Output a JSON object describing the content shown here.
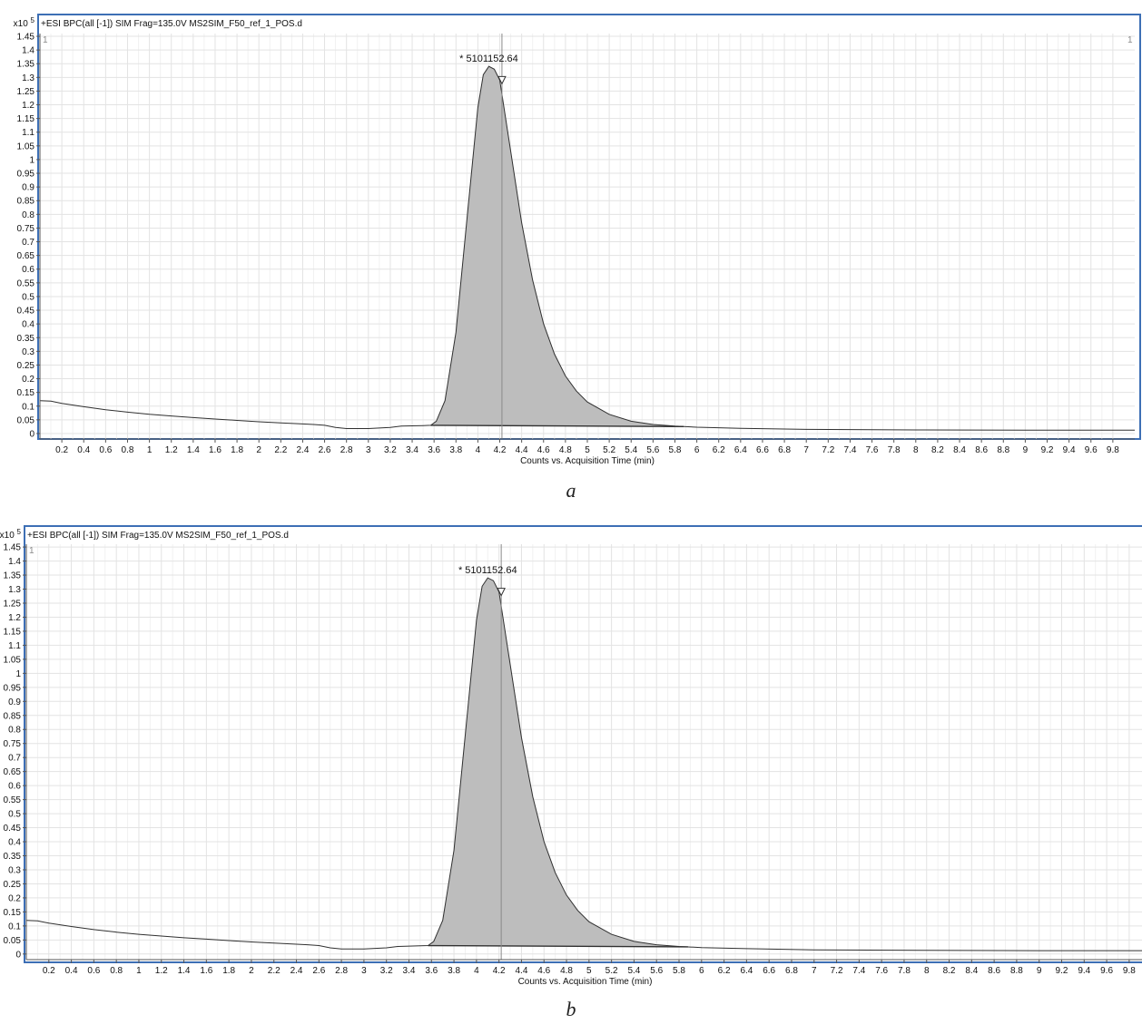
{
  "chart_data": [
    {
      "type": "area",
      "panel_label": "a",
      "title": "+ESI BPC(all [-1]) SIM Frag=135.0V MS2SIM_F50_ref_1_POS.d",
      "xlabel": "Counts vs. Acquisition Time (min)",
      "y_multiplier": "x10",
      "y_exponent": "5",
      "corner_label_left": "1",
      "corner_label_right": "1",
      "peak_annotation": "* 5101152.64",
      "peak_marker_x": 4.22,
      "peak_marker_y": 1.29,
      "xlim": [
        0,
        10.0
      ],
      "ylim": [
        -0.02,
        1.46
      ],
      "x_ticks": [
        "0.2",
        "0.4",
        "0.6",
        "0.8",
        "1",
        "1.2",
        "1.4",
        "1.6",
        "1.8",
        "2",
        "2.2",
        "2.4",
        "2.6",
        "2.8",
        "3",
        "3.2",
        "3.4",
        "3.6",
        "3.8",
        "4",
        "4.2",
        "4.4",
        "4.6",
        "4.8",
        "5",
        "5.2",
        "5.4",
        "5.6",
        "5.8",
        "6",
        "6.2",
        "6.4",
        "6.6",
        "6.8",
        "7",
        "7.2",
        "7.4",
        "7.6",
        "7.8",
        "8",
        "8.2",
        "8.4",
        "8.6",
        "8.8",
        "9",
        "9.2",
        "9.4",
        "9.6",
        "9.8"
      ],
      "y_ticks": [
        "0",
        "0.05",
        "0.1",
        "0.15",
        "0.2",
        "0.25",
        "0.3",
        "0.35",
        "0.4",
        "0.45",
        "0.5",
        "0.55",
        "0.6",
        "0.65",
        "0.7",
        "0.75",
        "0.8",
        "0.85",
        "0.9",
        "0.95",
        "1",
        "1.05",
        "1.1",
        "1.15",
        "1.2",
        "1.25",
        "1.3",
        "1.35",
        "1.4",
        "1.45"
      ],
      "grid": true,
      "integrated_region": [
        3.57,
        5.88
      ],
      "series": [
        {
          "x": [
            0.0,
            0.1,
            0.2,
            0.4,
            0.6,
            0.8,
            1.0,
            1.2,
            1.4,
            1.6,
            1.8,
            2.0,
            2.2,
            2.4,
            2.5,
            2.6,
            2.7,
            2.8,
            3.0,
            3.2,
            3.3,
            3.4,
            3.5,
            3.57,
            3.62,
            3.7,
            3.8,
            3.9,
            4.0,
            4.05,
            4.1,
            4.15,
            4.2,
            4.3,
            4.4,
            4.5,
            4.6,
            4.7,
            4.8,
            4.9,
            5.0,
            5.2,
            5.4,
            5.6,
            5.8,
            6.0,
            6.4,
            7.0,
            8.0,
            9.0,
            10.0
          ],
          "y": [
            0.12,
            0.118,
            0.11,
            0.098,
            0.087,
            0.078,
            0.07,
            0.064,
            0.058,
            0.053,
            0.048,
            0.043,
            0.039,
            0.035,
            0.033,
            0.03,
            0.022,
            0.018,
            0.018,
            0.022,
            0.027,
            0.028,
            0.029,
            0.03,
            0.045,
            0.12,
            0.37,
            0.78,
            1.19,
            1.31,
            1.34,
            1.33,
            1.29,
            1.03,
            0.77,
            0.56,
            0.4,
            0.29,
            0.21,
            0.155,
            0.115,
            0.07,
            0.045,
            0.033,
            0.027,
            0.023,
            0.019,
            0.015,
            0.013,
            0.012,
            0.012
          ]
        }
      ]
    },
    {
      "type": "area",
      "panel_label": "b",
      "title": "+ESI BPC(all [-1]) SIM Frag=135.0V MS2SIM_F50_ref_1_POS.d",
      "xlabel": "Counts vs. Acquisition Time (min)",
      "y_multiplier": "x10",
      "y_exponent": "5",
      "corner_label_left": "1",
      "peak_annotation": "* 5101152.64",
      "peak_marker_x": 4.22,
      "peak_marker_y": 1.29,
      "xlim": [
        0,
        9.93
      ],
      "ylim": [
        -0.02,
        1.46
      ],
      "x_ticks": [
        "0.2",
        "0.4",
        "0.6",
        "0.8",
        "1",
        "1.2",
        "1.4",
        "1.6",
        "1.8",
        "2",
        "2.2",
        "2.4",
        "2.6",
        "2.8",
        "3",
        "3.2",
        "3.4",
        "3.6",
        "3.8",
        "4",
        "4.2",
        "4.4",
        "4.6",
        "4.8",
        "5",
        "5.2",
        "5.4",
        "5.6",
        "5.8",
        "6",
        "6.2",
        "6.4",
        "6.6",
        "6.8",
        "7",
        "7.2",
        "7.4",
        "7.6",
        "7.8",
        "8",
        "8.2",
        "8.4",
        "8.6",
        "8.8",
        "9",
        "9.2",
        "9.4",
        "9.6",
        "9.8"
      ],
      "y_ticks": [
        "0",
        "0.05",
        "0.1",
        "0.15",
        "0.2",
        "0.25",
        "0.3",
        "0.35",
        "0.4",
        "0.45",
        "0.5",
        "0.55",
        "0.6",
        "0.65",
        "0.7",
        "0.75",
        "0.8",
        "0.85",
        "0.9",
        "0.95",
        "1",
        "1.05",
        "1.1",
        "1.15",
        "1.2",
        "1.25",
        "1.3",
        "1.35",
        "1.4",
        "1.45"
      ],
      "grid": true,
      "integrated_region": [
        3.57,
        5.88
      ],
      "series": [
        {
          "x": [
            0.0,
            0.1,
            0.2,
            0.4,
            0.6,
            0.8,
            1.0,
            1.2,
            1.4,
            1.6,
            1.8,
            2.0,
            2.2,
            2.4,
            2.5,
            2.6,
            2.7,
            2.8,
            3.0,
            3.2,
            3.3,
            3.4,
            3.5,
            3.57,
            3.62,
            3.7,
            3.8,
            3.9,
            4.0,
            4.05,
            4.1,
            4.15,
            4.2,
            4.3,
            4.4,
            4.5,
            4.6,
            4.7,
            4.8,
            4.9,
            5.0,
            5.2,
            5.4,
            5.6,
            5.8,
            6.0,
            6.4,
            7.0,
            8.0,
            9.0,
            9.93
          ],
          "y": [
            0.12,
            0.118,
            0.11,
            0.098,
            0.087,
            0.078,
            0.07,
            0.064,
            0.058,
            0.053,
            0.048,
            0.043,
            0.039,
            0.035,
            0.033,
            0.03,
            0.022,
            0.018,
            0.018,
            0.022,
            0.027,
            0.028,
            0.029,
            0.03,
            0.045,
            0.12,
            0.37,
            0.78,
            1.19,
            1.31,
            1.34,
            1.33,
            1.29,
            1.03,
            0.77,
            0.56,
            0.4,
            0.29,
            0.21,
            0.155,
            0.115,
            0.07,
            0.045,
            0.033,
            0.027,
            0.023,
            0.019,
            0.015,
            0.013,
            0.012,
            0.012
          ]
        }
      ]
    }
  ],
  "colors": {
    "frame": "#3d6fb5",
    "fill": "#bdbdbd",
    "trace": "#303030",
    "grid": "#e3e3e3",
    "cursor": "#8a8a8a",
    "text": "#111111"
  }
}
